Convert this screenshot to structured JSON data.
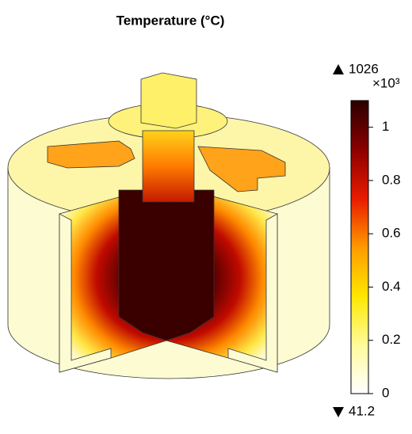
{
  "chart_data": {
    "type": "colormap",
    "title": "Temperature (°C)",
    "max": 1026,
    "min": 41.2,
    "scale_label": "×10³",
    "clim": [
      0,
      1.1
    ],
    "cticks": [
      0,
      0.2,
      0.4,
      0.6,
      0.8,
      1
    ],
    "colormap": [
      "#ffffff",
      "#fffb9a",
      "#ffe600",
      "#ff9a00",
      "#e81a00",
      "#8a0000",
      "#2a0000"
    ]
  }
}
